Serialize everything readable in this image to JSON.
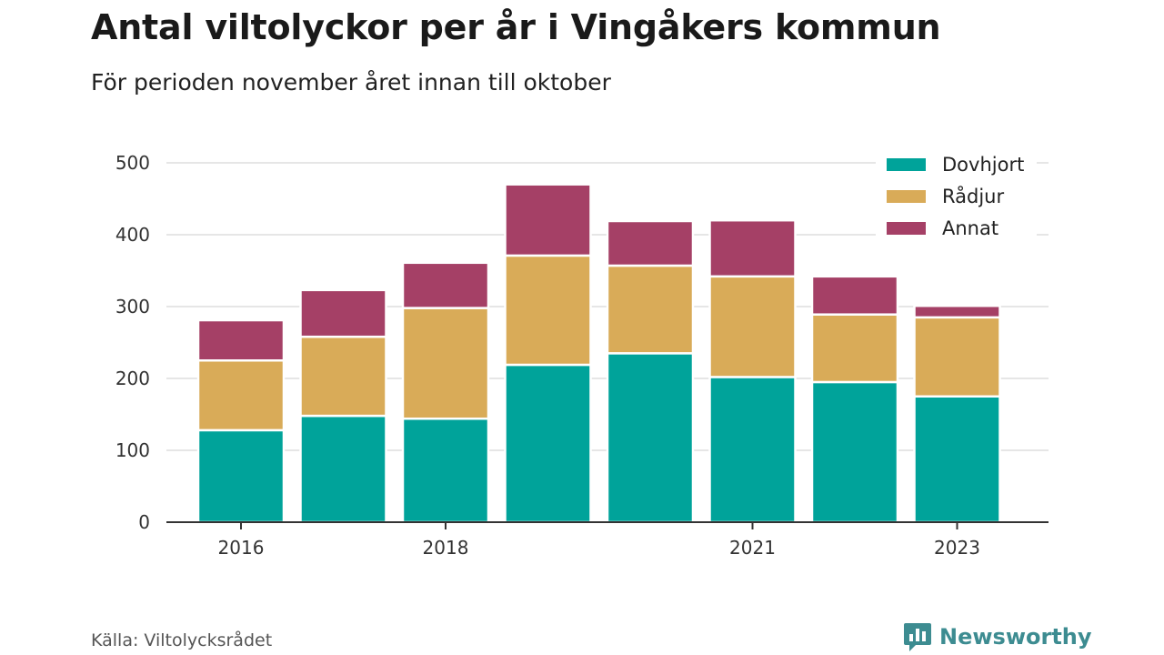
{
  "title": "Antal viltolyckor per år i Vingåkers kommun",
  "subtitle": "För perioden november året innan till oktober",
  "source": "Källa: Viltolycksrådet",
  "brand": {
    "name": "Newsworthy",
    "icon": "newsworthy-logo-icon",
    "color": "#3d8c91"
  },
  "chart_data": {
    "type": "bar",
    "stacked": true,
    "categories": [
      "2016",
      "2017",
      "2018",
      "2019",
      "2020",
      "2021",
      "2022",
      "2023"
    ],
    "x_tick_labels": [
      "2016",
      "2018",
      "2021",
      "2023"
    ],
    "series": [
      {
        "name": "Dovhjort",
        "color": "#00a39a",
        "values": [
          128,
          148,
          144,
          219,
          235,
          202,
          195,
          175
        ]
      },
      {
        "name": "Rådjur",
        "color": "#d9ab58",
        "values": [
          97,
          110,
          154,
          152,
          122,
          140,
          94,
          110
        ]
      },
      {
        "name": "Annat",
        "color": "#a54066",
        "values": [
          56,
          65,
          63,
          99,
          62,
          78,
          53,
          16
        ]
      }
    ],
    "y_ticks": [
      0,
      100,
      200,
      300,
      400,
      500
    ],
    "ylim": [
      0,
      500
    ],
    "grid": true,
    "legend_position": "top-right"
  }
}
